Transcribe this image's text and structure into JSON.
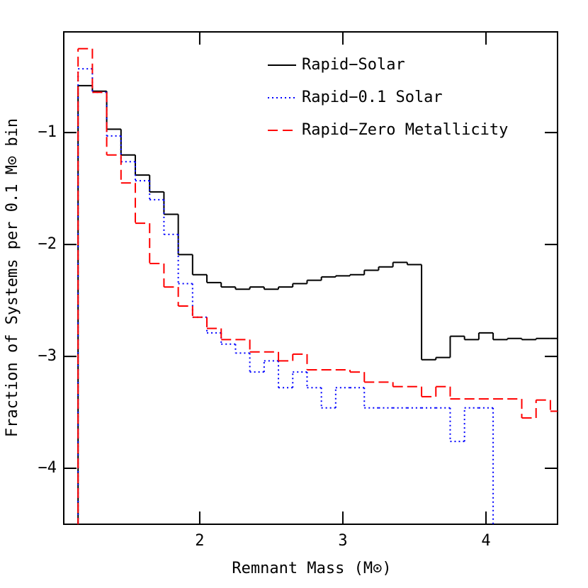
{
  "chart_data": {
    "type": "step-histogram",
    "xlabel": "Remnant Mass (M⊙)",
    "ylabel": "Fraction of Systems per 0.1 M⊙ bin",
    "bins": [
      1.15,
      1.25,
      1.35,
      1.45,
      1.55,
      1.65,
      1.75,
      1.85,
      1.95,
      2.05,
      2.15,
      2.25,
      2.35,
      2.45,
      2.55,
      2.65,
      2.75,
      2.85,
      2.95,
      3.05,
      3.15,
      3.25,
      3.35,
      3.45,
      3.55,
      3.65,
      3.75,
      3.85,
      3.95,
      4.05,
      4.15,
      4.25,
      4.35,
      4.45,
      4.55
    ],
    "series": [
      {
        "name": "Rapid−Solar",
        "color": "#000000",
        "dash": "solid",
        "values": [
          -0.58,
          -0.63,
          -0.97,
          -1.2,
          -1.38,
          -1.53,
          -1.73,
          -2.09,
          -2.27,
          -2.34,
          -2.38,
          -2.4,
          -2.38,
          -2.4,
          -2.38,
          -2.35,
          -2.32,
          -2.29,
          -2.28,
          -2.27,
          -2.23,
          -2.2,
          -2.16,
          -2.18,
          -3.03,
          -3.01,
          -2.82,
          -2.85,
          -2.79,
          -2.85,
          -2.84,
          -2.85,
          -2.84,
          -2.84
        ]
      },
      {
        "name": "Rapid−0.1 Solar",
        "color": "#0000ff",
        "dash": "dotted",
        "values": [
          -0.43,
          -0.64,
          -1.03,
          -1.26,
          -1.43,
          -1.6,
          -1.91,
          -2.35,
          -2.65,
          -2.79,
          -2.89,
          -2.97,
          -3.14,
          -3.04,
          -3.28,
          -3.14,
          -3.28,
          -3.46,
          -3.28,
          -3.28,
          -3.46,
          -3.46,
          -3.46,
          -3.46,
          -3.46,
          -3.46,
          -3.76,
          -3.46,
          -3.46,
          null,
          null,
          null,
          null,
          null
        ]
      },
      {
        "name": "Rapid−Zero Metallicity",
        "color": "#ff0000",
        "dash": "dashed",
        "values": [
          -0.25,
          -0.64,
          -1.2,
          -1.45,
          -1.81,
          -2.17,
          -2.38,
          -2.55,
          -2.65,
          -2.75,
          -2.85,
          -2.85,
          -2.96,
          -2.96,
          -3.04,
          -2.98,
          -3.12,
          -3.12,
          -3.12,
          -3.14,
          -3.23,
          -3.23,
          -3.27,
          -3.27,
          -3.36,
          -3.27,
          -3.38,
          -3.38,
          -3.38,
          -3.38,
          -3.38,
          -3.55,
          -3.39,
          -3.49
        ]
      }
    ],
    "xlim": [
      1.05,
      4.5
    ],
    "xticks": [
      2,
      3,
      4
    ],
    "ylim": [
      -4.5,
      -0.1
    ],
    "yticks": [
      {
        "value": -4,
        "label": "−4"
      },
      {
        "value": -3,
        "label": "−3"
      },
      {
        "value": -2,
        "label": "−2"
      },
      {
        "value": -1,
        "label": "−1"
      }
    ],
    "legend": "upper right"
  }
}
